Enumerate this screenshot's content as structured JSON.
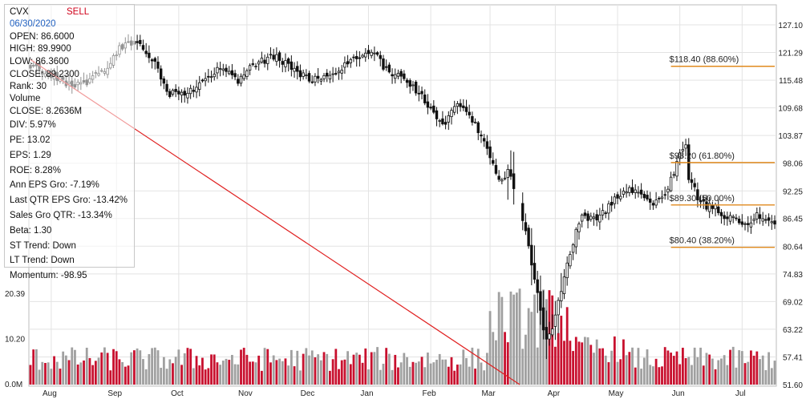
{
  "info": {
    "symbol": "CVX",
    "signal": "SELL",
    "date": "06/30/2020",
    "open": "OPEN: 86.6000",
    "high": "HIGH: 89.9900",
    "low": "LOW: 86.3600",
    "close": "CLOSE: 89.2300",
    "rank": "Rank: 30",
    "volume_label": "Volume",
    "volume_close": "CLOSE: 8.2636M",
    "div": "DIV: 5.97%",
    "pe": "PE: 13.02",
    "eps": "EPS: 1.29",
    "roe": "ROE: 8.28%",
    "ann_eps": "Ann EPS Gro: -7.19%",
    "qtr_eps": "Last QTR EPS Gro: -13.42%",
    "sales": "Sales Gro QTR: -13.34%",
    "beta": "Beta: 1.30",
    "st_trend": "ST Trend: Down",
    "lt_trend": "LT Trend: Down",
    "momentum": "Momentum: -98.95"
  },
  "colors": {
    "up_volume": "#c8102e",
    "down_volume": "#a0a0a0",
    "fib_line": "#e08a1e",
    "trend_line": "#e02020",
    "grid": "#e3e3e3",
    "signal": "#d0021b",
    "date": "#1f5fbf"
  },
  "chart_data": {
    "type": "candlestick",
    "price_axis": {
      "ticks": [
        "127.10",
        "121.29",
        "115.48",
        "109.68",
        "103.87",
        "98.06",
        "92.25",
        "86.45",
        "80.64",
        "74.83",
        "69.02",
        "63.22",
        "57.41",
        "51.60"
      ],
      "range": [
        51.6,
        127.1
      ]
    },
    "volume_axis": {
      "ticks": [
        "20.39",
        "10.20",
        "0.0M"
      ],
      "range_millions": [
        0,
        20.39
      ]
    },
    "x_axis": {
      "labels": [
        "Aug",
        "Sep",
        "Oct",
        "Nov",
        "Dec",
        "Jan",
        "Feb",
        "Mar",
        "Apr",
        "May",
        "Jun",
        "Jul"
      ],
      "label_day_index": [
        7,
        29,
        50,
        73,
        94,
        114,
        135,
        155,
        177,
        198,
        219,
        240
      ]
    },
    "fib_levels": [
      {
        "price": 118.4,
        "label": "$118.40 (88.60%)"
      },
      {
        "price": 98.2,
        "label": "$98.20 (61.80%)"
      },
      {
        "price": 89.3,
        "label": "$89.30 (50.00%)"
      },
      {
        "price": 80.4,
        "label": "$80.40 (38.20%)"
      }
    ],
    "fib_start_day": 216,
    "trend_line": {
      "from": {
        "day": 0,
        "price": 119.8
      },
      "to": {
        "day": 165,
        "price": 51.6
      }
    },
    "close_anchors": [
      [
        0,
        118.5
      ],
      [
        6,
        117.0
      ],
      [
        14,
        114.2
      ],
      [
        20,
        115.5
      ],
      [
        26,
        118.2
      ],
      [
        30,
        122.5
      ],
      [
        36,
        123.5
      ],
      [
        42,
        119.5
      ],
      [
        46,
        113.0
      ],
      [
        52,
        112.0
      ],
      [
        58,
        115.5
      ],
      [
        64,
        118.0
      ],
      [
        70,
        115.5
      ],
      [
        74,
        118.5
      ],
      [
        82,
        120.5
      ],
      [
        88,
        118.0
      ],
      [
        94,
        115.5
      ],
      [
        100,
        116.5
      ],
      [
        106,
        118.5
      ],
      [
        112,
        120.5
      ],
      [
        116,
        121.0
      ],
      [
        120,
        117.5
      ],
      [
        126,
        115.5
      ],
      [
        132,
        112.5
      ],
      [
        136,
        108.0
      ],
      [
        140,
        106.5
      ],
      [
        144,
        110.5
      ],
      [
        148,
        108.5
      ],
      [
        152,
        104.0
      ],
      [
        156,
        97.5
      ],
      [
        158,
        94.0
      ],
      [
        161,
        96.5
      ],
      [
        163,
        93.0
      ],
      [
        166,
        86.5
      ],
      [
        168,
        80.0
      ],
      [
        170,
        74.0
      ],
      [
        172,
        66.5
      ],
      [
        174,
        60.5
      ],
      [
        176,
        64.0
      ],
      [
        178,
        69.0
      ],
      [
        180,
        74.5
      ],
      [
        182,
        79.0
      ],
      [
        184,
        84.0
      ],
      [
        186,
        87.5
      ],
      [
        190,
        86.0
      ],
      [
        194,
        88.0
      ],
      [
        198,
        91.5
      ],
      [
        202,
        92.5
      ],
      [
        206,
        91.0
      ],
      [
        210,
        89.5
      ],
      [
        214,
        91.5
      ],
      [
        217,
        96.0
      ],
      [
        219,
        100.5
      ],
      [
        221,
        101.5
      ],
      [
        222,
        95.0
      ],
      [
        225,
        91.0
      ],
      [
        228,
        89.0
      ],
      [
        231,
        88.5
      ],
      [
        234,
        86.0
      ],
      [
        237,
        87.0
      ],
      [
        240,
        85.5
      ],
      [
        242,
        84.5
      ],
      [
        245,
        87.5
      ],
      [
        248,
        86.5
      ],
      [
        250,
        85.0
      ]
    ]
  }
}
